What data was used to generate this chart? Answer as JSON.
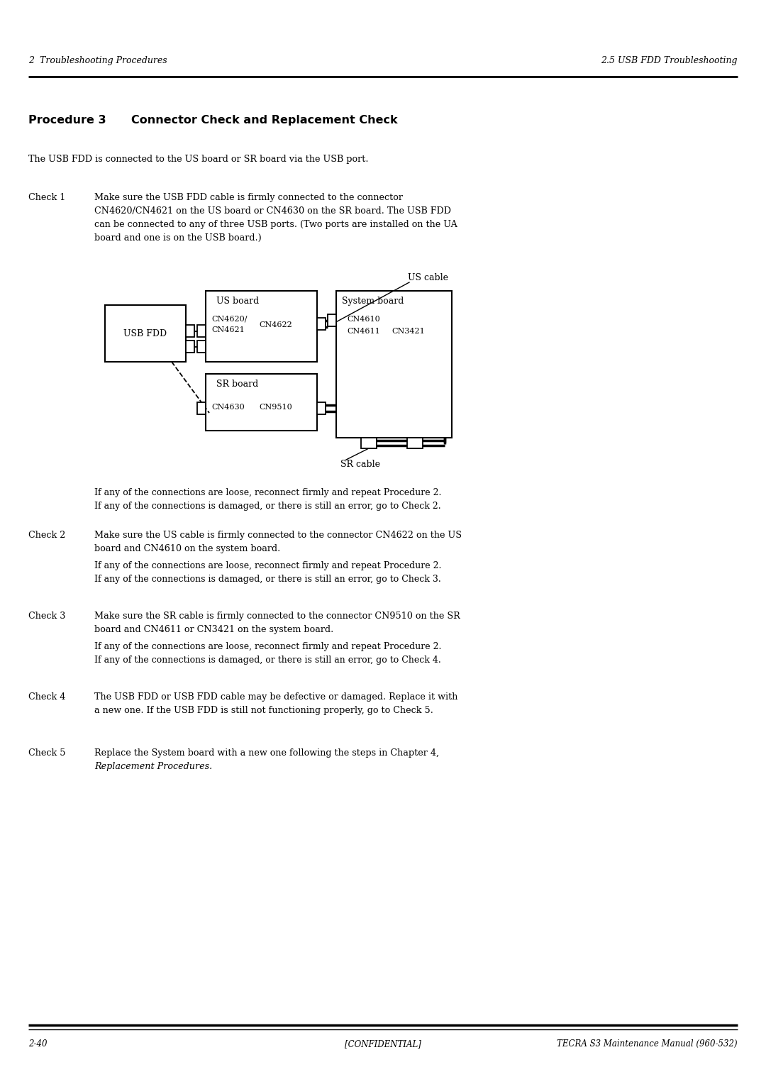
{
  "bg_color": "#ffffff",
  "header_left": "2  Troubleshooting Procedures",
  "header_right": "2.5 USB FDD Troubleshooting",
  "intro_text": "The USB FDD is connected to the US board or SR board via the USB port.",
  "check1_label": "Check 1",
  "check1_text_l1": "Make sure the USB FDD cable is firmly connected to the connector",
  "check1_text_l2": "CN4620/CN4621 on the US board or CN4630 on the SR board. The USB FDD",
  "check1_text_l3": "can be connected to any of three USB ports. (Two ports are installed on the UA",
  "check1_text_l4": "board and one is on the USB board.)",
  "check1_note1": "If any of the connections are loose, reconnect firmly and repeat Procedure 2.",
  "check1_note2": "If any of the connections is damaged, or there is still an error, go to Check 2.",
  "check2_label": "Check 2",
  "check2_text_l1": "Make sure the US cable is firmly connected to the connector CN4622 on the US",
  "check2_text_l2": "board and CN4610 on the system board.",
  "check2_note1": "If any of the connections are loose, reconnect firmly and repeat Procedure 2.",
  "check2_note2": "If any of the connections is damaged, or there is still an error, go to Check 3.",
  "check3_label": "Check 3",
  "check3_text_l1": "Make sure the SR cable is firmly connected to the connector CN9510 on the SR",
  "check3_text_l2": "board and CN4611 or CN3421 on the system board.",
  "check3_note1": "If any of the connections are loose, reconnect firmly and repeat Procedure 2.",
  "check3_note2": "If any of the connections is damaged, or there is still an error, go to Check 4.",
  "check4_label": "Check 4",
  "check4_text_l1": "The USB FDD or USB FDD cable may be defective or damaged. Replace it with",
  "check4_text_l2": "a new one. If the USB FDD is still not functioning properly, go to Check 5.",
  "check5_label": "Check 5",
  "check5_text": "Replace the System board with a new one following the steps in Chapter 4,",
  "check5_italic": "Replacement Procedures.",
  "footer_left": "2-40",
  "footer_center": "[CONFIDENTIAL]",
  "footer_right": "TECRA S3 Maintenance Manual (960-532)"
}
